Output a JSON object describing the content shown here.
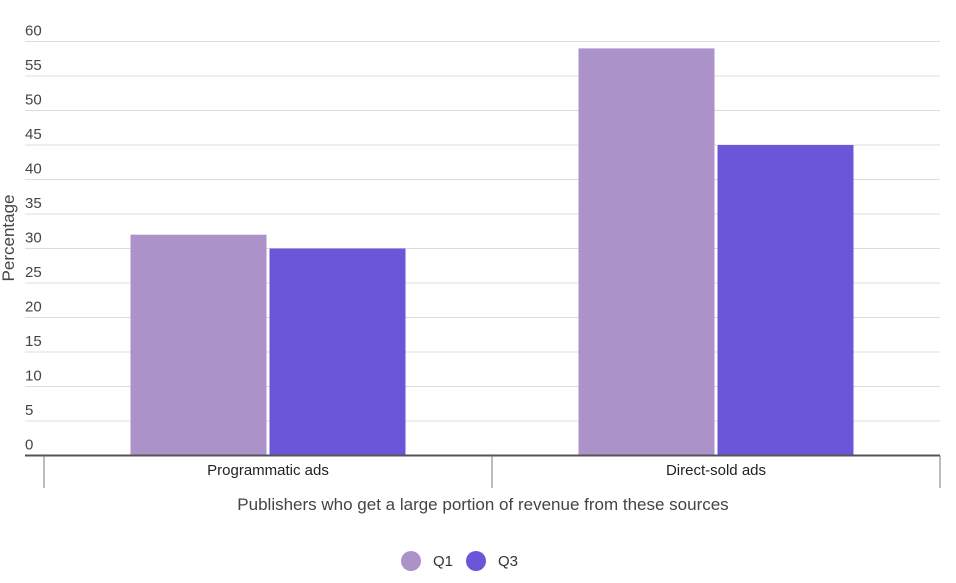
{
  "chart_data": {
    "type": "bar",
    "title": "",
    "xlabel": "Publishers who get a large portion of revenue from these sources",
    "ylabel": "Percentage",
    "categories": [
      "Programmatic ads",
      "Direct-sold ads"
    ],
    "series": [
      {
        "name": "Q1",
        "values": [
          32,
          59
        ],
        "color": "#ab92c9"
      },
      {
        "name": "Q3",
        "values": [
          30,
          45
        ],
        "color": "#6b55d9"
      }
    ],
    "ylim": [
      0,
      60
    ],
    "yticks": [
      0,
      5,
      10,
      15,
      20,
      25,
      30,
      35,
      40,
      45,
      50,
      55,
      60
    ],
    "grid": true,
    "legend_position": "bottom"
  }
}
